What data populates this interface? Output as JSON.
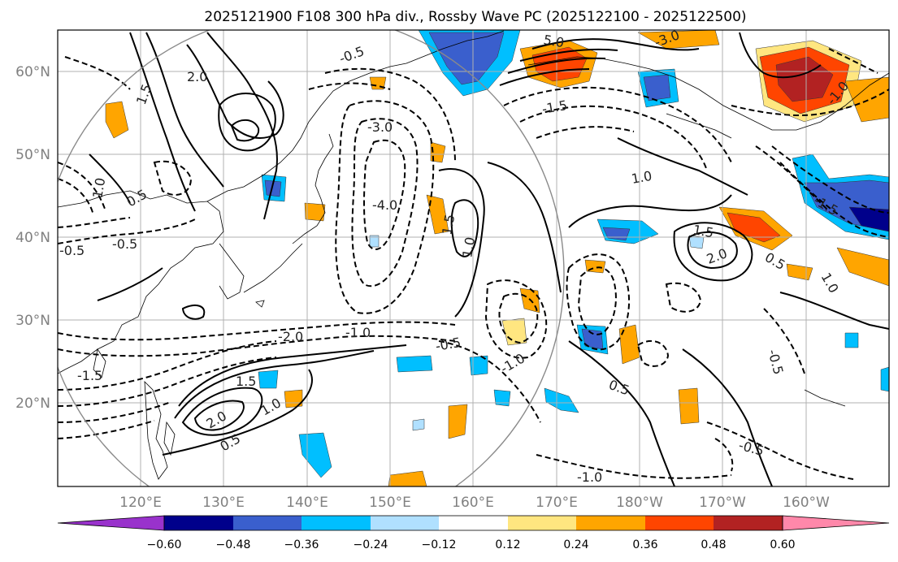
{
  "title": "2025121900 F108 300 hPa div., Rossby Wave PC (2025122100 - 2025122500)",
  "axes": {
    "lon_ticks": [
      "120°E",
      "130°E",
      "140°E",
      "150°E",
      "160°E",
      "170°E",
      "180°W",
      "170°W",
      "160°W"
    ],
    "lat_ticks": [
      "60°N",
      "50°N",
      "40°N",
      "30°N",
      "20°N"
    ]
  },
  "map_extent": {
    "lon_min": 110,
    "lon_max": 210,
    "lat_min": 10,
    "lat_max": 65
  },
  "contour_labels": {
    "positive": [
      "2.0",
      "1.5",
      "1.0",
      "0.5",
      "2.0",
      "1.5",
      "1.0",
      "0.5",
      "1.0",
      "1.5",
      "2.0",
      "1.0",
      "0.5",
      "1.5",
      "5.0",
      "1.0",
      "0.5"
    ],
    "negative": [
      "-0.5",
      "-3.0",
      "-4.0",
      "-1.0",
      "-2.0",
      "-1.5",
      "-0.5",
      "-1.0",
      "-0.5",
      "-1.5",
      "-0.5",
      "-1.0",
      "-3.0",
      "-0.5",
      "-1.0",
      "-0.5",
      "-1.5"
    ]
  },
  "colorbar": {
    "ticks": [
      "−0.60",
      "−0.48",
      "−0.36",
      "−0.24",
      "−0.12",
      "0.12",
      "0.24",
      "0.36",
      "0.48",
      "0.60"
    ],
    "colors": [
      "#9932cc",
      "#00008b",
      "#3a5fcd",
      "#00bfff",
      "#b0e0ff",
      "#ffffff",
      "#ffe680",
      "#ffa500",
      "#ff4500",
      "#b22222",
      "#ff88aa"
    ]
  },
  "fill_colors": {
    "pos1": "#ffe680",
    "pos2": "#ffa500",
    "pos3": "#ff4500",
    "pos4": "#b22222",
    "neg1": "#b0e0ff",
    "neg2": "#00bfff",
    "neg3": "#3a5fcd",
    "neg4": "#00008b"
  }
}
